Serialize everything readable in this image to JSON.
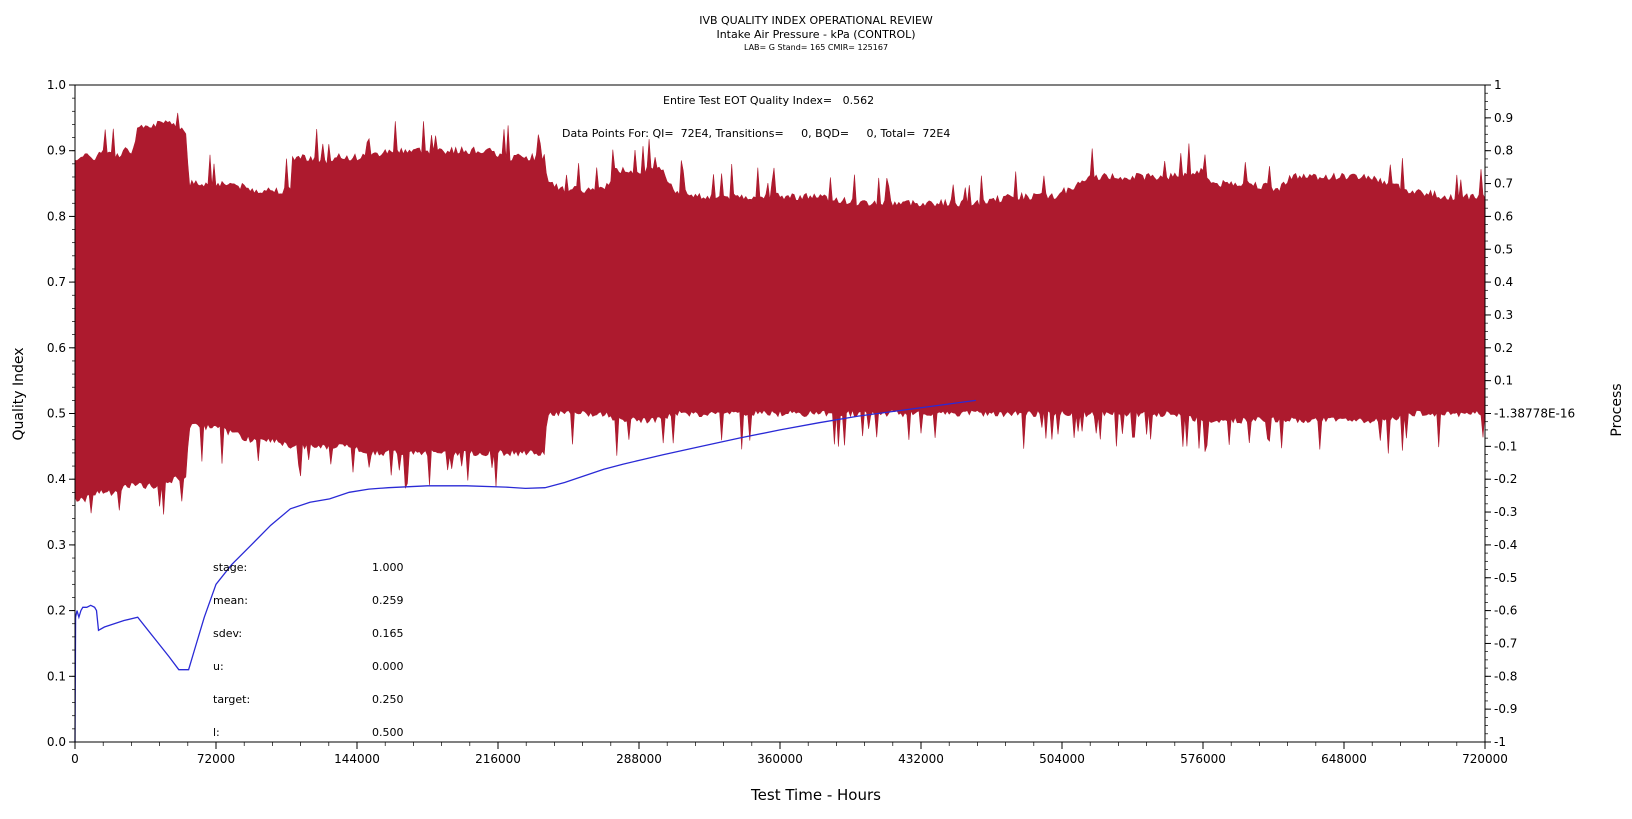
{
  "header": {
    "title": "IVB QUALITY INDEX OPERATIONAL REVIEW",
    "subtitle": "Intake Air Pressure - kPa (CONTROL)",
    "info": "LAB= G Stand= 165 CMIR= 125167"
  },
  "annotations": {
    "eot": "Entire Test EOT Quality Index=   0.562",
    "points": "Data Points For: QI=  72E4, Transitions=     0, BQD=     0, Total=  72E4"
  },
  "stats": [
    {
      "label": "stage:",
      "value": "1.000"
    },
    {
      "label": "mean:",
      "value": "0.259"
    },
    {
      "label": "sdev:",
      "value": "0.165"
    },
    {
      "label": "u:",
      "value": "0.000"
    },
    {
      "label": "target:",
      "value": "0.250"
    },
    {
      "label": "l:",
      "value": "0.500"
    }
  ],
  "colors": {
    "band": "#ad1a2e",
    "line": "#2a2ad6",
    "axis": "#000000"
  },
  "chart_data": {
    "type": "line",
    "title": "IVB QUALITY INDEX OPERATIONAL REVIEW",
    "xlabel": "Test Time - Hours",
    "ylabel": "Quality Index",
    "y2label": "Process",
    "xlim": [
      0,
      720000
    ],
    "ylim": [
      0,
      1
    ],
    "y2lim": [
      -1,
      1
    ],
    "xticks": [
      0,
      72000,
      144000,
      216000,
      288000,
      360000,
      432000,
      504000,
      576000,
      648000,
      720000
    ],
    "yticks": [
      "0.0",
      "0.1",
      "0.2",
      "0.3",
      "0.4",
      "0.5",
      "0.6",
      "0.7",
      "0.8",
      "0.9",
      "1.0"
    ],
    "y2ticks": [
      "-1",
      "-0.9",
      "-0.8",
      "-0.7",
      "-0.6",
      "-0.5",
      "-0.4",
      "-0.3",
      "-0.2",
      "-0.1",
      "-1.38778E-16",
      "0.1",
      "0.2",
      "0.3",
      "0.4",
      "0.5",
      "0.6",
      "0.7",
      "0.8",
      "0.9",
      "1"
    ],
    "grid": false,
    "series": [
      {
        "kind": "band",
        "x": [
          0,
          5000,
          10000,
          15000,
          20000,
          25000,
          30000,
          32000,
          40000,
          50000,
          57000,
          58000,
          65000,
          72000,
          80000,
          90000,
          100000,
          110000,
          111000,
          120000,
          130000,
          135000,
          140000,
          150000,
          160000,
          170000,
          180000,
          190000,
          200000,
          210000,
          220000,
          230000,
          240000,
          241000,
          250000,
          260000,
          270000,
          276000,
          290000,
          300000,
          306000,
          320000,
          340000,
          360000,
          380000,
          400000,
          420000,
          440000,
          460000,
          480000,
          500000,
          520000,
          540000,
          560000,
          576000,
          580000,
          600000,
          615000,
          620000,
          640000,
          660000,
          670000,
          680000,
          700000,
          720000
        ],
        "high": [
          0.89,
          0.89,
          0.89,
          0.9,
          0.89,
          0.9,
          0.9,
          0.94,
          0.94,
          0.94,
          0.93,
          0.85,
          0.85,
          0.85,
          0.85,
          0.84,
          0.84,
          0.84,
          0.89,
          0.89,
          0.88,
          0.89,
          0.89,
          0.89,
          0.9,
          0.9,
          0.9,
          0.9,
          0.9,
          0.9,
          0.89,
          0.89,
          0.89,
          0.85,
          0.84,
          0.84,
          0.84,
          0.87,
          0.87,
          0.87,
          0.84,
          0.83,
          0.83,
          0.83,
          0.83,
          0.82,
          0.82,
          0.82,
          0.82,
          0.83,
          0.83,
          0.86,
          0.86,
          0.86,
          0.87,
          0.85,
          0.85,
          0.84,
          0.86,
          0.86,
          0.86,
          0.85,
          0.84,
          0.83,
          0.83
        ],
        "low": [
          0.37,
          0.37,
          0.38,
          0.38,
          0.38,
          0.39,
          0.39,
          0.39,
          0.39,
          0.4,
          0.4,
          0.48,
          0.48,
          0.48,
          0.47,
          0.46,
          0.46,
          0.45,
          0.45,
          0.45,
          0.45,
          0.45,
          0.45,
          0.44,
          0.44,
          0.44,
          0.44,
          0.44,
          0.44,
          0.44,
          0.44,
          0.44,
          0.44,
          0.5,
          0.5,
          0.5,
          0.5,
          0.49,
          0.49,
          0.49,
          0.5,
          0.5,
          0.5,
          0.5,
          0.5,
          0.5,
          0.5,
          0.5,
          0.5,
          0.5,
          0.5,
          0.5,
          0.5,
          0.5,
          0.49,
          0.49,
          0.49,
          0.49,
          0.49,
          0.49,
          0.49,
          0.49,
          0.5,
          0.5,
          0.5
        ]
      },
      {
        "kind": "line",
        "x": [
          0,
          300,
          1000,
          2000,
          3000,
          4000,
          6000,
          8000,
          10000,
          11000,
          12000,
          15000,
          20000,
          25000,
          32000,
          40000,
          48000,
          53000,
          58000,
          62000,
          66000,
          72000,
          80000,
          90000,
          100000,
          110000,
          120000,
          130000,
          140000,
          150000,
          160000,
          180000,
          200000,
          220000,
          230000,
          240000,
          250000,
          260000,
          270000,
          280000,
          290000,
          300000,
          320000,
          340000,
          360000,
          380000,
          400000,
          420000,
          440000,
          460000
        ],
        "y": [
          0.0,
          0.19,
          0.2,
          0.19,
          0.2,
          0.205,
          0.205,
          0.208,
          0.205,
          0.2,
          0.17,
          0.175,
          0.18,
          0.185,
          0.19,
          0.16,
          0.13,
          0.11,
          0.11,
          0.15,
          0.19,
          0.24,
          0.27,
          0.3,
          0.33,
          0.355,
          0.365,
          0.37,
          0.38,
          0.385,
          0.387,
          0.39,
          0.39,
          0.388,
          0.386,
          0.387,
          0.395,
          0.405,
          0.415,
          0.423,
          0.43,
          0.437,
          0.45,
          0.463,
          0.475,
          0.486,
          0.496,
          0.504,
          0.512,
          0.52
        ]
      }
    ]
  }
}
